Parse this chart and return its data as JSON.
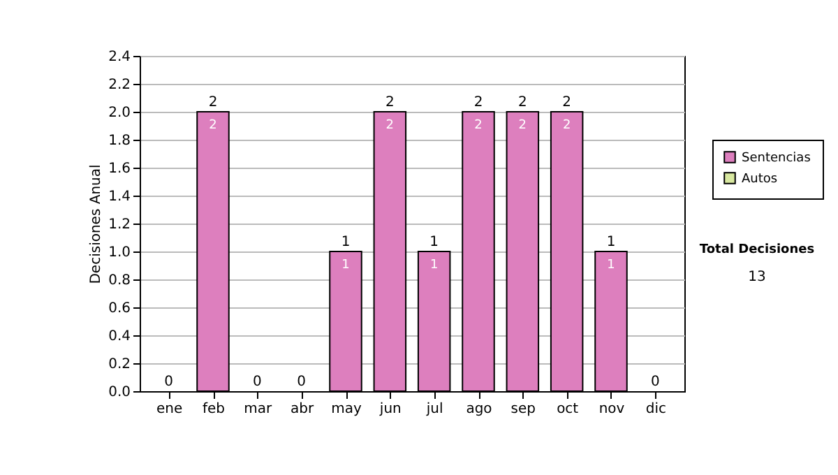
{
  "chart_data": {
    "type": "bar",
    "stacked": true,
    "ylabel": "Decisiones Anual",
    "categories": [
      "ene",
      "feb",
      "mar",
      "abr",
      "may",
      "jun",
      "jul",
      "ago",
      "sep",
      "oct",
      "nov",
      "dic"
    ],
    "series": [
      {
        "name": "Sentencias",
        "color": "#dd7fbe",
        "values": [
          0,
          2,
          0,
          0,
          1,
          2,
          1,
          2,
          2,
          2,
          1,
          0
        ],
        "value_labels": [
          null,
          "2",
          null,
          null,
          "1",
          "2",
          "1",
          "2",
          "2",
          "2",
          "1",
          null
        ]
      },
      {
        "name": "Autos",
        "color": "#d8e8a0",
        "values": [
          0,
          0,
          0,
          0,
          0,
          0,
          0,
          0,
          0,
          0,
          0,
          0
        ]
      }
    ],
    "totals": [
      "0",
      "2",
      "0",
      "0",
      "1",
      "2",
      "1",
      "2",
      "2",
      "2",
      "1",
      "0"
    ],
    "ylim": [
      0,
      2.4
    ],
    "yticks": [
      {
        "value": 0,
        "label": "0.0"
      },
      {
        "value": 0.2,
        "label": "0.2"
      },
      {
        "value": 0.4,
        "label": "0.4"
      },
      {
        "value": 0.6,
        "label": "0.6"
      },
      {
        "value": 0.8,
        "label": "0.8"
      },
      {
        "value": 1,
        "label": "1.0"
      },
      {
        "value": 1.2,
        "label": "1.2"
      },
      {
        "value": 1.4,
        "label": "1.4"
      },
      {
        "value": 1.6,
        "label": "1.6"
      },
      {
        "value": 1.8,
        "label": "1.8"
      },
      {
        "value": 2,
        "label": "2.0"
      },
      {
        "value": 2.2,
        "label": "2.2"
      },
      {
        "value": 2.4,
        "label": "2.4"
      }
    ],
    "grid": "y",
    "legend": "right",
    "annotations": [
      "Total Decisiones",
      "13"
    ]
  }
}
